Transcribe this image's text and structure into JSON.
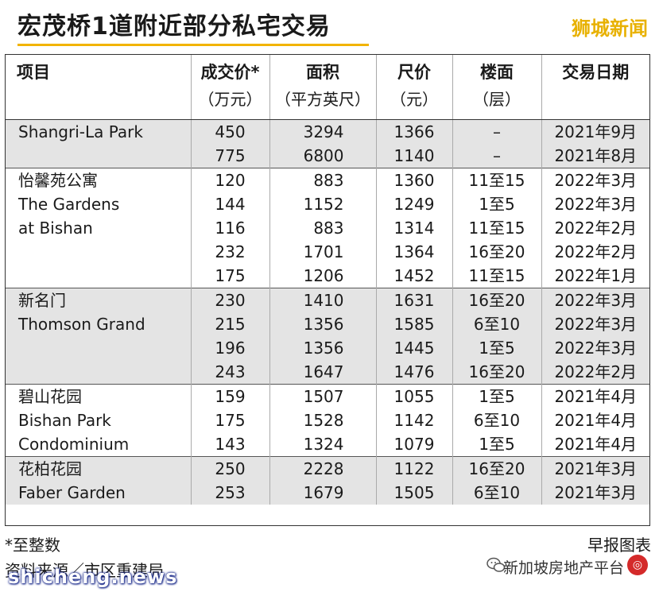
{
  "title": "宏茂桥1道附近部分私宅交易",
  "brand": "狮城新闻",
  "headers": [
    {
      "main": "项目",
      "sub": ""
    },
    {
      "main": "成交价*",
      "sub": "（万元）"
    },
    {
      "main": "面积",
      "sub": "（平方英尺）"
    },
    {
      "main": "尺价",
      "sub": "（元）"
    },
    {
      "main": "楼面",
      "sub": "（层）"
    },
    {
      "main": "交易日期",
      "sub": ""
    }
  ],
  "rows": [
    [
      "Shangri-La Park",
      "450",
      "3294",
      "1366",
      "–",
      "2021年9月"
    ],
    [
      "",
      "775",
      "6800",
      "1140",
      "–",
      "2021年8月"
    ],
    [
      "怡馨苑公寓",
      "120",
      "883",
      "1360",
      "11至15",
      "2022年3月"
    ],
    [
      "The Gardens",
      "144",
      "1152",
      "1249",
      "1至5",
      "2022年3月"
    ],
    [
      "at Bishan",
      "116",
      "883",
      "1314",
      "11至15",
      "2022年2月"
    ],
    [
      "",
      "232",
      "1701",
      "1364",
      "16至20",
      "2022年2月"
    ],
    [
      "",
      "175",
      "1206",
      "1452",
      "11至15",
      "2022年1月"
    ],
    [
      "新名门",
      "230",
      "1410",
      "1631",
      "16至20",
      "2022年3月"
    ],
    [
      "Thomson Grand",
      "215",
      "1356",
      "1585",
      "6至10",
      "2022年3月"
    ],
    [
      "",
      "196",
      "1356",
      "1445",
      "1至5",
      "2022年3月"
    ],
    [
      "",
      "243",
      "1647",
      "1476",
      "16至20",
      "2022年2月"
    ],
    [
      "碧山花园",
      "159",
      "1507",
      "1055",
      "1至5",
      "2021年4月"
    ],
    [
      "Bishan Park",
      "175",
      "1528",
      "1142",
      "6至10",
      "2021年4月"
    ],
    [
      "Condominium",
      "143",
      "1324",
      "1079",
      "1至5",
      "2021年4月"
    ],
    [
      "花柏花园",
      "250",
      "2228",
      "1122",
      "16至20",
      "2021年3月"
    ],
    [
      "Faber Garden",
      "253",
      "1679",
      "1505",
      "6至10",
      "2021年3月"
    ]
  ],
  "footnote": "*至整数",
  "source": "资料来源／市区重建局",
  "credit": "早报图表",
  "watermark_account": "新加坡房地产平台",
  "watermark_site": "shicheng.news"
}
